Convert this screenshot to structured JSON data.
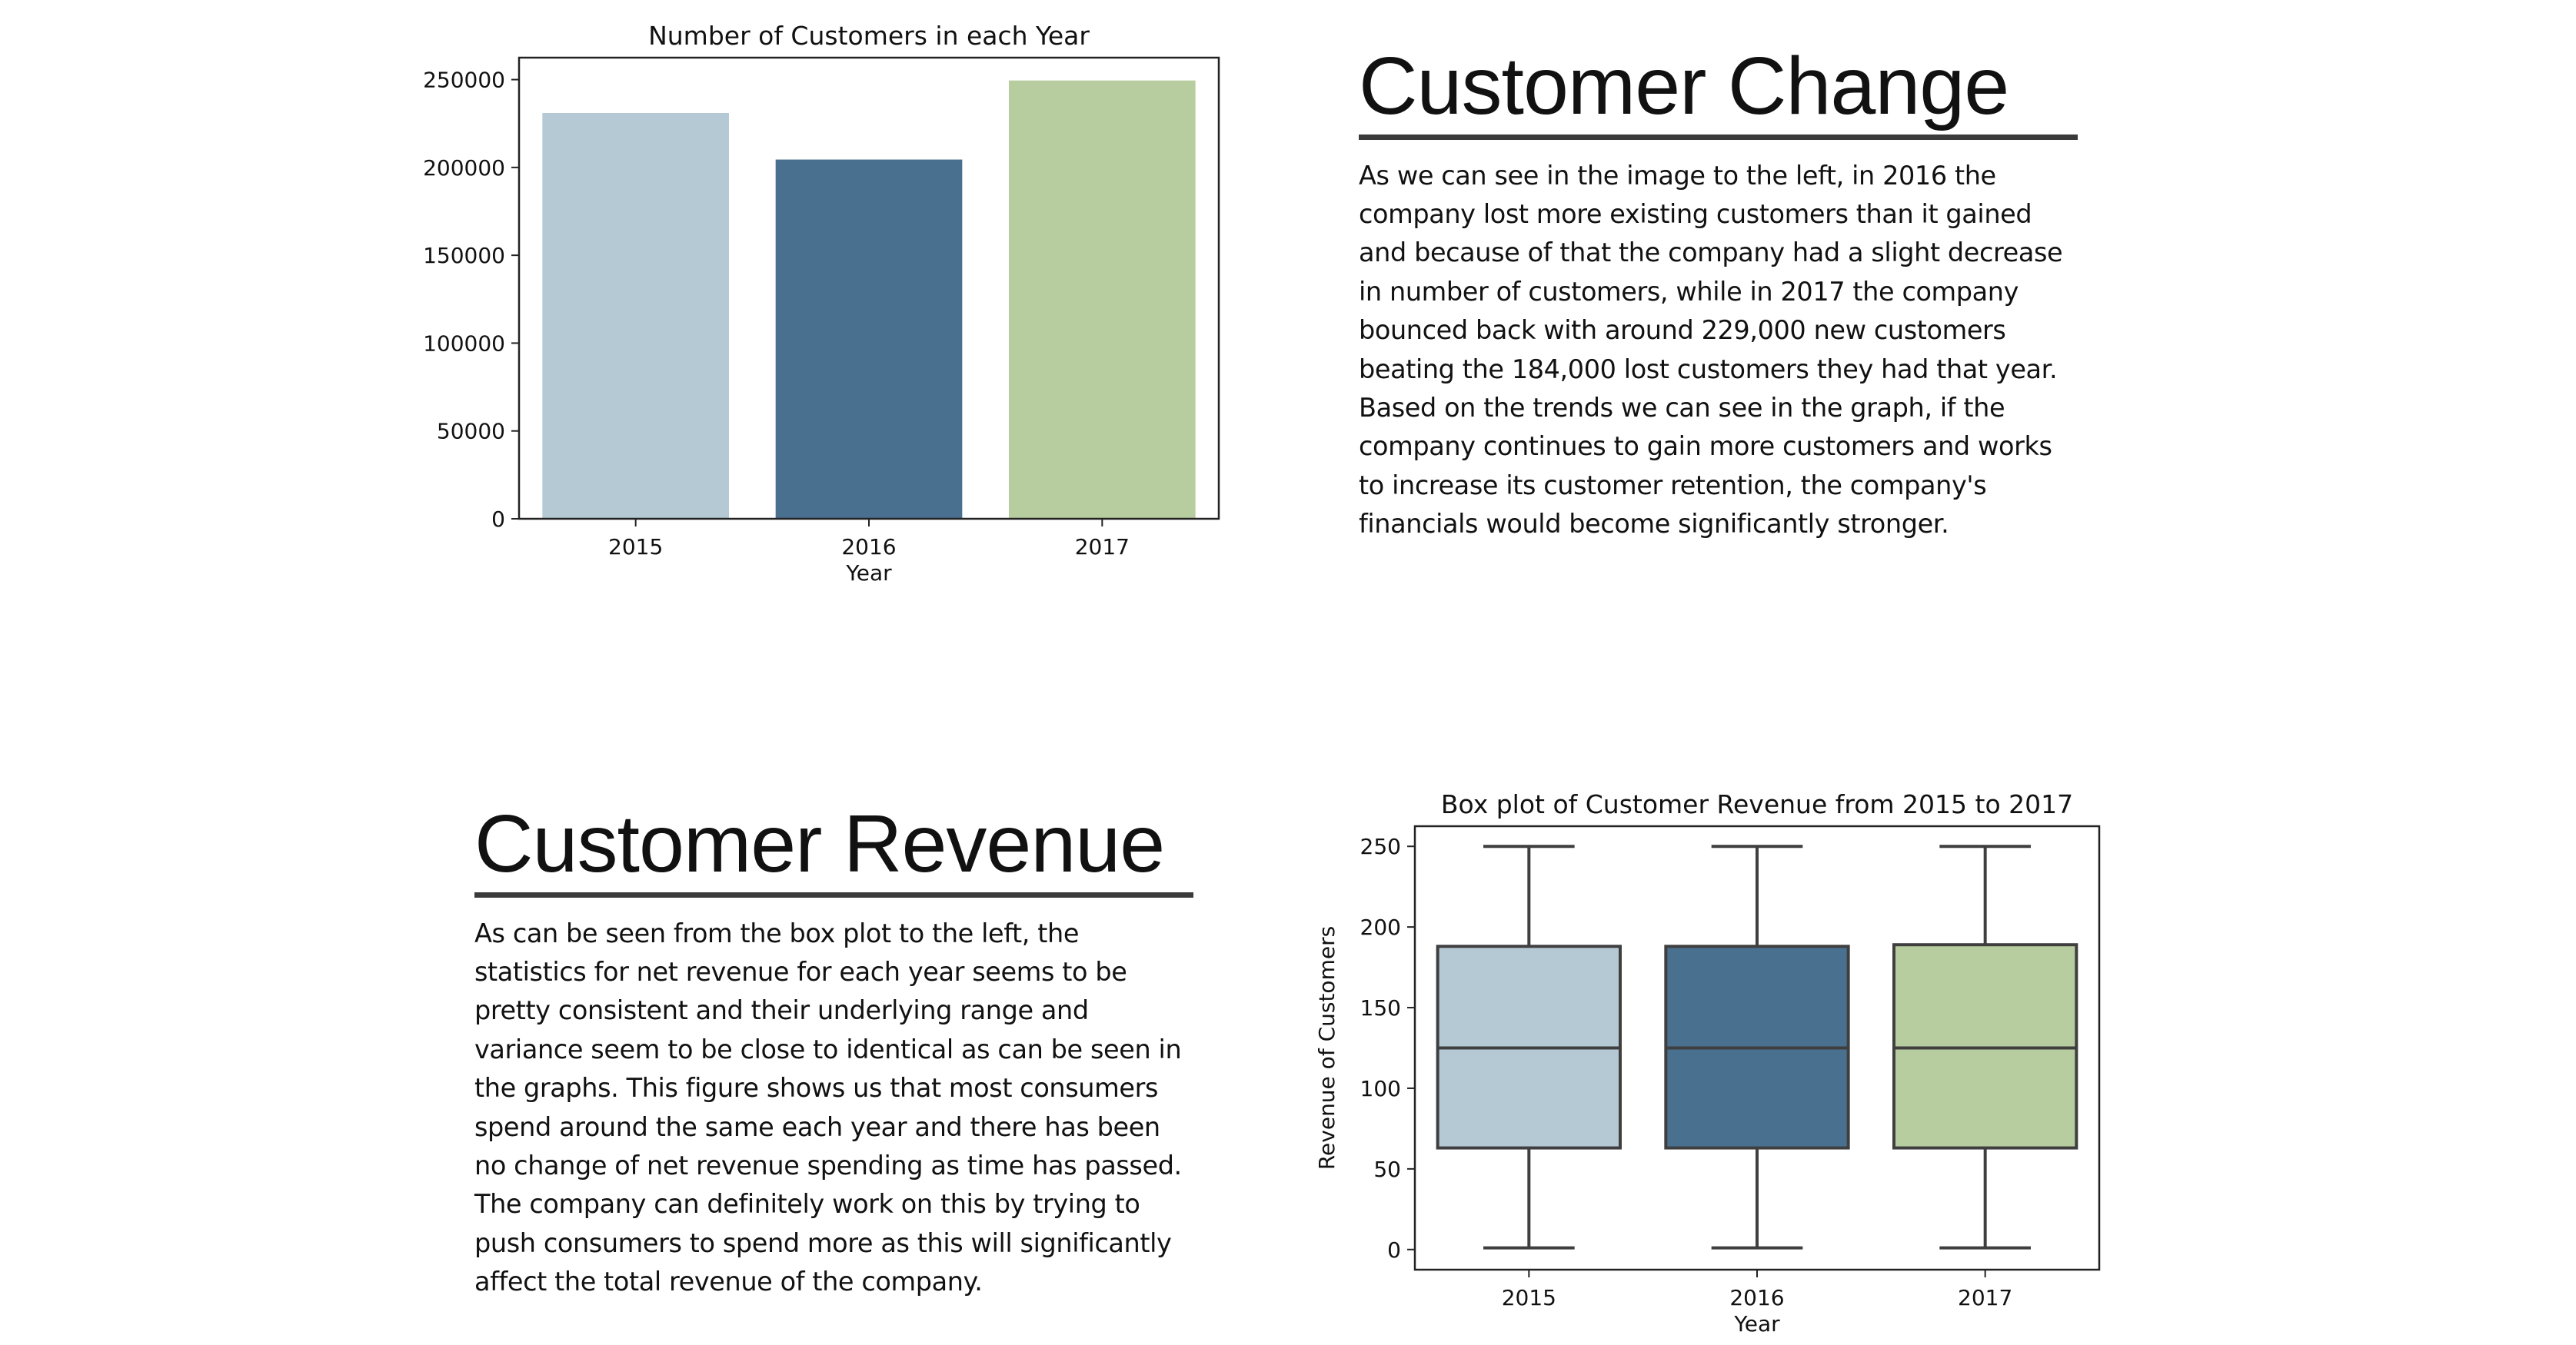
{
  "colors": {
    "light_blue": "#b5c9d5",
    "dark_blue": "#4a7090",
    "light_green": "#b8cd9f",
    "box_outline": "#3f3f3f",
    "rule": "#3a3a3a"
  },
  "chart_data": [
    {
      "type": "bar",
      "title": "Number of Customers in each Year",
      "xlabel": "Year",
      "ylabel": "",
      "categories": [
        "2015",
        "2016",
        "2017"
      ],
      "values": [
        231000,
        204500,
        249500
      ],
      "colors": [
        "#b5c9d5",
        "#4a7090",
        "#b8cd9f"
      ],
      "ylim": [
        0,
        262500
      ],
      "yticks": [
        0,
        50000,
        100000,
        150000,
        200000,
        250000
      ],
      "grid": false,
      "legend": "none"
    },
    {
      "type": "box",
      "title": "Box plot of Customer Revenue from 2015 to 2017",
      "xlabel": "Year",
      "ylabel": "Revenue of Customers",
      "categories": [
        "2015",
        "2016",
        "2017"
      ],
      "series": [
        {
          "category": "2015",
          "min": 1,
          "q1": 63,
          "median": 125,
          "q3": 188,
          "max": 250
        },
        {
          "category": "2016",
          "min": 1,
          "q1": 63,
          "median": 125,
          "q3": 188,
          "max": 250
        },
        {
          "category": "2017",
          "min": 1,
          "q1": 63,
          "median": 125,
          "q3": 189,
          "max": 250
        }
      ],
      "colors": [
        "#b5c9d5",
        "#4a7090",
        "#b8cd9f"
      ],
      "ylim": [
        -12.5,
        262.5
      ],
      "yticks": [
        0,
        50,
        100,
        150,
        200,
        250
      ],
      "grid": false,
      "legend": "none"
    }
  ],
  "sections": {
    "customer_change": {
      "heading": "Customer Change",
      "body": "As we can see in the image to the left, in 2016 the company lost more existing customers than it gained and because of that the company had a slight decrease in number of customers, while in 2017 the company bounced back with around 229,000 new customers beating the 184,000 lost customers they had that year. Based on the trends we can see in the graph, if the company continues to gain more customers and works to increase its customer retention, the company's financials would become significantly stronger."
    },
    "customer_revenue": {
      "heading": "Customer Revenue",
      "body": "As can be seen from the box plot to the left, the statistics for net revenue for each year seems to be pretty consistent and their underlying range and variance seem to be close to identical as can be seen in the graphs. This figure shows us that most consumers spend around the same each year and there has been no change of net revenue spending as time has passed. The company can definitely work on this by trying to push consumers to spend more as this will significantly affect the total revenue of the company."
    }
  }
}
